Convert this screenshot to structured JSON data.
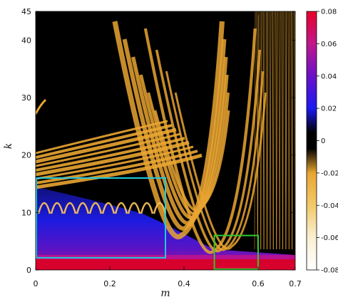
{
  "chart_data": {
    "type": "heatmap",
    "title": "",
    "xlabel": "m",
    "ylabel": "k",
    "xlim": [
      0,
      0.7
    ],
    "ylim": [
      0,
      45
    ],
    "x_ticks": [
      "0",
      "0.2",
      "0.4",
      "0.6",
      "0.7"
    ],
    "x_tick_values": [
      0,
      0.2,
      0.4,
      0.6,
      0.7
    ],
    "y_ticks": [
      "0",
      "10",
      "20",
      "30",
      "40",
      "45"
    ],
    "y_tick_values": [
      0,
      10,
      20,
      30,
      40,
      45
    ],
    "colorbar": {
      "range": [
        -0.08,
        0.08
      ],
      "tick_labels": [
        "0.08",
        "0.06",
        "0.04",
        "0.02",
        "0",
        "-0.02",
        "-0.04",
        "-0.06",
        "-0.08"
      ],
      "tick_values": [
        0.08,
        0.06,
        0.04,
        0.02,
        0,
        -0.02,
        -0.04,
        -0.06,
        -0.08
      ],
      "colors": {
        "0.08": "#e8002a",
        "0.06": "#c0188a",
        "0.04": "#6a10c8",
        "0.02": "#1a1af0",
        "0": "#000000",
        "-0.02": "#e9a531",
        "-0.04": "#f2c96a",
        "-0.06": "#faf0d2",
        "-0.08": "#ffffff"
      }
    },
    "regions": [
      {
        "color": "#22c9dd",
        "x": [
          0,
          0.35
        ],
        "y": [
          2,
          16
        ]
      },
      {
        "color": "#2ec82e",
        "x": [
          0.48,
          0.6
        ],
        "y": [
          0,
          6
        ]
      }
    ]
  }
}
